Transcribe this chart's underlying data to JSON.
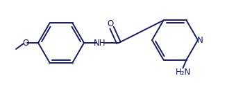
{
  "background_color": "#ffffff",
  "line_color": "#1a1a5e",
  "line_width": 1.4,
  "text_color": "#1a1a5e",
  "font_size": 8.5,
  "figsize": [
    3.27,
    1.23
  ],
  "dpi": 100,
  "xlim": [
    0,
    327
  ],
  "ylim": [
    0,
    123
  ]
}
